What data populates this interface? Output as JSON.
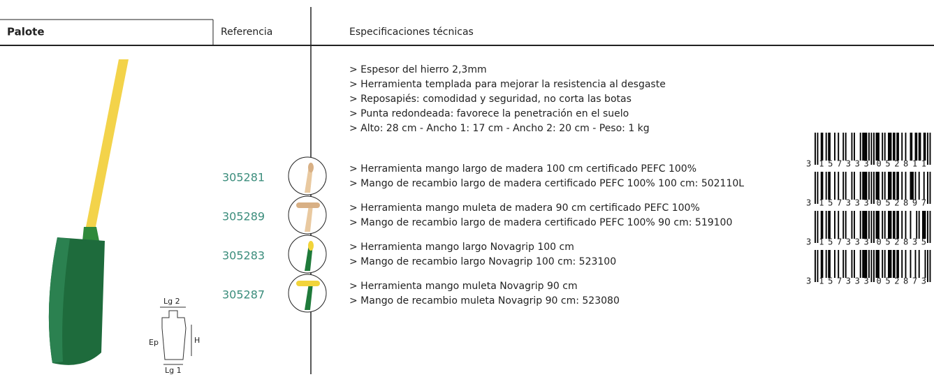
{
  "header": {
    "title": "Palote",
    "reference": "Referencia",
    "specs": "Especificaciones técnicas"
  },
  "general_specs": [
    "> Espesor del hierro 2,3mm",
    "> Herramienta templada para mejorar la resistencia al desgaste",
    "> Reposapiés: comodidad y seguridad, no corta las botas",
    "> Punta redondeada: favorece la penetración en el suelo",
    "> Alto: 28 cm - Ancho 1: 17 cm - Ancho 2: 20 cm - Peso: 1 kg"
  ],
  "products": [
    {
      "reference": "305281",
      "specs": [
        "> Herramienta mango largo de madera 100 cm certificado PEFC 100%",
        "> Mango de recambio largo de madera certificado PEFC 100% 100 cm: 502110L"
      ],
      "barcode": {
        "first": "3",
        "left": "157333",
        "right": "052811"
      }
    },
    {
      "reference": "305289",
      "specs": [
        "> Herramienta mango muleta de madera 90 cm certificado PEFC 100%",
        "> Mango de recambio largo de madera certificado PEFC 100% 90 cm: 519100"
      ],
      "barcode": {
        "first": "3",
        "left": "157333",
        "right": "052897"
      }
    },
    {
      "reference": "305283",
      "specs": [
        "> Herramienta mango largo Novagrip 100 cm",
        "> Mango de recambio largo Novagrip 100 cm: 523100"
      ],
      "barcode": {
        "first": "3",
        "left": "157333",
        "right": "052835"
      }
    },
    {
      "reference": "305287",
      "specs": [
        "> Herramienta mango muleta Novagrip 90 cm",
        "> Mango de recambio muleta Novagrip 90 cm: 523080"
      ],
      "barcode": {
        "first": "3",
        "left": "157333",
        "right": "052873"
      }
    }
  ],
  "diagram": {
    "width_top": "Lg 2",
    "thickness": "Ep",
    "height": "H",
    "width_bottom": "Lg 1"
  }
}
